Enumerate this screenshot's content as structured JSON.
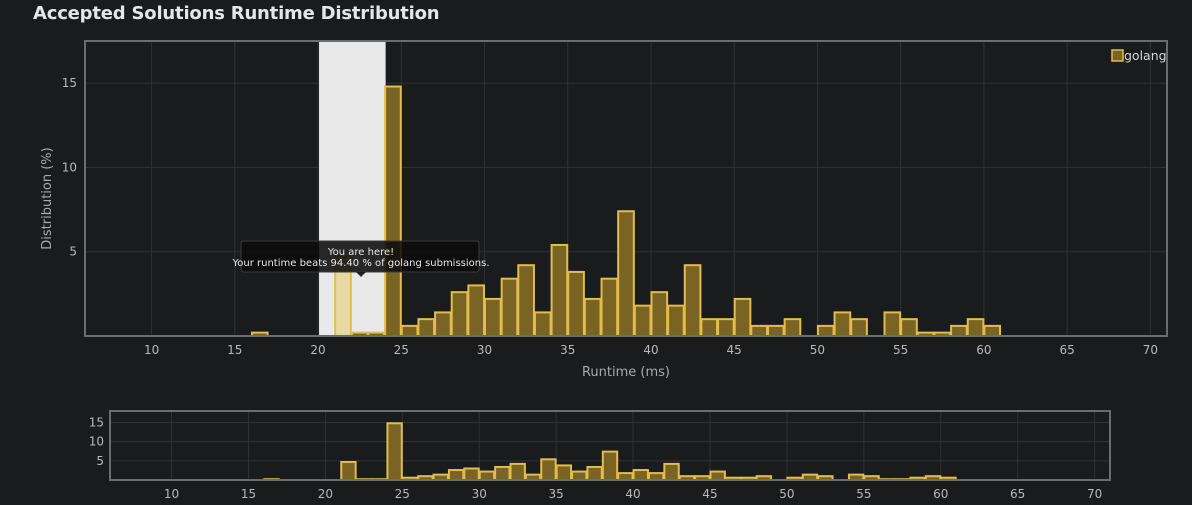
{
  "page": {
    "title": "Accepted Solutions Runtime Distribution"
  },
  "colors": {
    "background": "#1a1b1d",
    "bar_fill": "#7a6424",
    "bar_stroke": "#e3bd4b",
    "highlight_fill": "#e8d9a4",
    "selection_band": "#e9e9e9",
    "frame": "#6c6c6c",
    "grid": "#2f3134"
  },
  "chart_data": [
    {
      "type": "bar",
      "title": "Accepted Solutions Runtime Distribution",
      "xlabel": "Runtime (ms)",
      "ylabel": "Distribution (%)",
      "xlim": [
        6,
        71
      ],
      "ylim": [
        0,
        17.5
      ],
      "xticks": [
        10,
        15,
        20,
        25,
        30,
        35,
        40,
        45,
        50,
        55,
        60,
        65,
        70
      ],
      "yticks": [
        5,
        10,
        15
      ],
      "grid": true,
      "legend": {
        "position": "top-right",
        "entries": [
          "golang"
        ]
      },
      "bin_width": 1,
      "series": [
        {
          "name": "golang",
          "x": [
            16,
            21,
            22,
            23,
            24,
            25,
            26,
            27,
            28,
            29,
            30,
            31,
            32,
            33,
            34,
            35,
            36,
            37,
            38,
            39,
            40,
            41,
            42,
            43,
            44,
            45,
            46,
            47,
            48,
            50,
            51,
            52,
            53,
            54,
            55,
            56,
            57,
            58,
            59,
            60,
            61
          ],
          "values": [
            0.2,
            4.7,
            0.2,
            0.2,
            14.8,
            0.6,
            1.0,
            1.4,
            2.6,
            3.0,
            2.2,
            3.4,
            4.2,
            1.4,
            5.4,
            3.8,
            2.2,
            3.4,
            7.4,
            1.8,
            2.6,
            1.8,
            4.2,
            1.0,
            1.0,
            2.2,
            0.6,
            0.6,
            1.0,
            0.6,
            1.4,
            1.0,
            0.0,
            1.4,
            1.0,
            0.2,
            0.2,
            0.6,
            1.0,
            0.6,
            0.0
          ]
        }
      ],
      "highlight": {
        "x": 20,
        "label_line1": "You are here!",
        "label_line2": "Your runtime beats 94.40 % of golang submissions."
      },
      "selection": {
        "from": 20,
        "to": 24
      }
    },
    {
      "type": "bar",
      "title": "",
      "xlabel": "",
      "ylabel": "",
      "xlim": [
        6,
        71
      ],
      "ylim": [
        0,
        18
      ],
      "xticks": [
        10,
        15,
        20,
        25,
        30,
        35,
        40,
        45,
        50,
        55,
        60,
        65,
        70
      ],
      "yticks": [
        5,
        10,
        15
      ],
      "grid": true
    }
  ]
}
